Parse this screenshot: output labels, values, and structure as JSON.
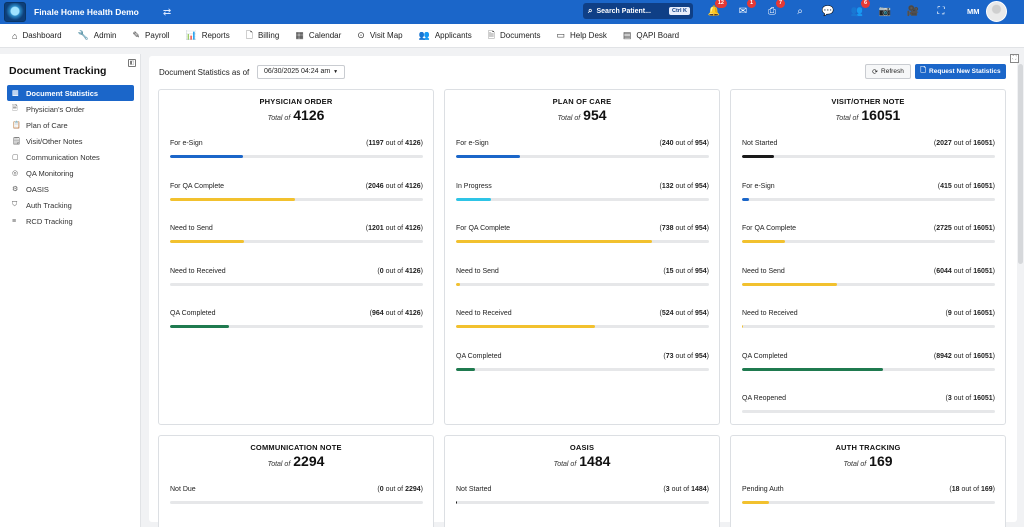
{
  "app": {
    "title": "Finale Home Health Demo"
  },
  "topbar": {
    "search_label": "Search Patient...",
    "search_shortcut": "Ctrl K",
    "icons": [
      {
        "name": "notification-bell-icon",
        "glyph": "🔔",
        "badge": "12"
      },
      {
        "name": "mail-icon",
        "glyph": "✉",
        "badge": "1"
      },
      {
        "name": "print-icon",
        "glyph": "⎙",
        "badge": "7"
      },
      {
        "name": "search-icon",
        "glyph": "⌕",
        "badge": ""
      },
      {
        "name": "chat-icon",
        "glyph": "💬",
        "badge": ""
      },
      {
        "name": "users-icon",
        "glyph": "👥",
        "badge": "6"
      },
      {
        "name": "camera-icon",
        "glyph": "📷",
        "badge": ""
      },
      {
        "name": "video-icon",
        "glyph": "🎥",
        "badge": ""
      },
      {
        "name": "fullscreen-icon",
        "glyph": "⛶",
        "badge": ""
      }
    ],
    "user_initials": "MM"
  },
  "nav": {
    "items": [
      {
        "label": "Dashboard",
        "icon": "home-icon",
        "glyph": "⌂"
      },
      {
        "label": "Admin",
        "icon": "wrench-icon",
        "glyph": "🔧"
      },
      {
        "label": "Payroll",
        "icon": "edit-icon",
        "glyph": "✎"
      },
      {
        "label": "Reports",
        "icon": "bar-chart-icon",
        "glyph": "📊"
      },
      {
        "label": "Billing",
        "icon": "document-icon",
        "glyph": "🗋"
      },
      {
        "label": "Calendar",
        "icon": "calendar-icon",
        "glyph": "▦"
      },
      {
        "label": "Visit Map",
        "icon": "map-pin-icon",
        "glyph": "⊙"
      },
      {
        "label": "Applicants",
        "icon": "people-icon",
        "glyph": "👥"
      },
      {
        "label": "Documents",
        "icon": "file-icon",
        "glyph": "🗎"
      },
      {
        "label": "Help Desk",
        "icon": "monitor-icon",
        "glyph": "▭"
      },
      {
        "label": "QAPI Board",
        "icon": "board-icon",
        "glyph": "▤"
      }
    ]
  },
  "sidebar": {
    "title": "Document Tracking",
    "items": [
      {
        "label": "Document Statistics",
        "icon": "chart-icon",
        "glyph": "▥",
        "active": true
      },
      {
        "label": "Physician's Order",
        "icon": "document-icon",
        "glyph": "🗎",
        "active": false
      },
      {
        "label": "Plan of Care",
        "icon": "clipboard-icon",
        "glyph": "📋",
        "active": false
      },
      {
        "label": "Visit/Other Notes",
        "icon": "notes-icon",
        "glyph": "🗒",
        "active": false
      },
      {
        "label": "Communication Notes",
        "icon": "message-icon",
        "glyph": "▢",
        "active": false
      },
      {
        "label": "QA Monitoring",
        "icon": "monitoring-icon",
        "glyph": "◎",
        "active": false
      },
      {
        "label": "OASIS",
        "icon": "gear-icon",
        "glyph": "⚙",
        "active": false
      },
      {
        "label": "Auth Tracking",
        "icon": "shield-icon",
        "glyph": "⛉",
        "active": false
      },
      {
        "label": "RCD Tracking",
        "icon": "layers-icon",
        "glyph": "≡",
        "active": false
      }
    ]
  },
  "main": {
    "stats_label": "Document Statistics as of",
    "date_value": "06/30/2025 04:24 am",
    "refresh_label": "Refresh",
    "request_label": "Request New Statistics",
    "total_of_label": "Total of",
    "out_of_label": "out of"
  },
  "colors": {
    "blue": "#1b66c9",
    "yellow": "#f2c12e",
    "green": "#1f7a4f",
    "cyan": "#2ec4e6",
    "black": "#1a1a1a",
    "track": "#e6e7e9"
  },
  "cards": [
    {
      "title": "PHYSICIAN ORDER",
      "total": "4126",
      "metrics": [
        {
          "label": "For e-Sign",
          "count": "1197",
          "total": "4126",
          "fraction": 0.29,
          "color": "blue"
        },
        {
          "label": "For QA Complete",
          "count": "2046",
          "total": "4126",
          "fraction": 0.496,
          "color": "yellow"
        },
        {
          "label": "Need to Send",
          "count": "1201",
          "total": "4126",
          "fraction": 0.291,
          "color": "yellow"
        },
        {
          "label": "Need to Received",
          "count": "0",
          "total": "4126",
          "fraction": 0,
          "color": "yellow"
        },
        {
          "label": "QA Completed",
          "count": "964",
          "total": "4126",
          "fraction": 0.234,
          "color": "green"
        }
      ]
    },
    {
      "title": "PLAN OF CARE",
      "total": "954",
      "metrics": [
        {
          "label": "For e-Sign",
          "count": "240",
          "total": "954",
          "fraction": 0.252,
          "color": "blue"
        },
        {
          "label": "In Progress",
          "count": "132",
          "total": "954",
          "fraction": 0.138,
          "color": "cyan"
        },
        {
          "label": "For QA Complete",
          "count": "738",
          "total": "954",
          "fraction": 0.774,
          "color": "yellow"
        },
        {
          "label": "Need to Send",
          "count": "15",
          "total": "954",
          "fraction": 0.016,
          "color": "yellow"
        },
        {
          "label": "Need to Received",
          "count": "524",
          "total": "954",
          "fraction": 0.549,
          "color": "yellow"
        },
        {
          "label": "QA Completed",
          "count": "73",
          "total": "954",
          "fraction": 0.077,
          "color": "green"
        }
      ]
    },
    {
      "title": "VISIT/OTHER NOTE",
      "total": "16051",
      "metrics": [
        {
          "label": "Not Started",
          "count": "2027",
          "total": "16051",
          "fraction": 0.126,
          "color": "black"
        },
        {
          "label": "For e-Sign",
          "count": "415",
          "total": "16051",
          "fraction": 0.026,
          "color": "blue"
        },
        {
          "label": "For QA Complete",
          "count": "2725",
          "total": "16051",
          "fraction": 0.17,
          "color": "yellow"
        },
        {
          "label": "Need to Send",
          "count": "6044",
          "total": "16051",
          "fraction": 0.377,
          "color": "yellow"
        },
        {
          "label": "Need to Received",
          "count": "9",
          "total": "16051",
          "fraction": 0.001,
          "color": "yellow"
        },
        {
          "label": "QA Completed",
          "count": "8942",
          "total": "16051",
          "fraction": 0.557,
          "color": "green"
        },
        {
          "label": "QA Reopened",
          "count": "3",
          "total": "16051",
          "fraction": 0.0,
          "color": "yellow"
        }
      ]
    },
    {
      "title": "COMMUNICATION NOTE",
      "total": "2294",
      "metrics": [
        {
          "label": "Not Due",
          "count": "0",
          "total": "2294",
          "fraction": 0,
          "color": "yellow"
        }
      ]
    },
    {
      "title": "OASIS",
      "total": "1484",
      "metrics": [
        {
          "label": "Not Started",
          "count": "3",
          "total": "1484",
          "fraction": 0.002,
          "color": "black"
        }
      ]
    },
    {
      "title": "AUTH TRACKING",
      "total": "169",
      "metrics": [
        {
          "label": "Pending Auth",
          "count": "18",
          "total": "169",
          "fraction": 0.107,
          "color": "yellow"
        }
      ]
    }
  ]
}
